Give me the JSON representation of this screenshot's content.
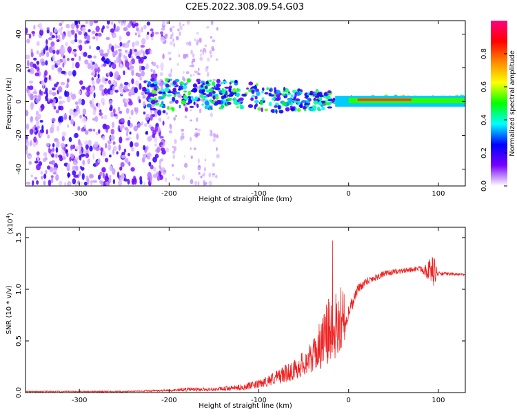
{
  "title": "C2E5.2022.308.09.54.G03",
  "colors": {
    "spectrogram_low": "#e4ccf8",
    "spectrogram_mid": "#6a00e8",
    "snr_line": "#ee2222",
    "axis": "#000000"
  },
  "chart_data": [
    {
      "type": "heatmap",
      "name": "spectrogram",
      "xlabel": "Height of straight line (km)",
      "ylabel": "Frequency (Hz)",
      "xlim": [
        -360,
        130
      ],
      "ylim": [
        -50,
        48
      ],
      "xticks": [
        -300,
        -200,
        -100,
        0,
        100
      ],
      "yticks": [
        -40,
        -20,
        0,
        20,
        40
      ],
      "colorbar": {
        "label": "Normalized spectral amplitude",
        "range": [
          0,
          1
        ],
        "ticks": [
          "0.0",
          "0.2",
          "0.4",
          "0.6",
          "0.8"
        ],
        "stops": [
          "#ffffff",
          "#7700ff",
          "#0000ff",
          "#00ffff",
          "#00ff00",
          "#ffff00",
          "#ff8800",
          "#ff0000",
          "#ff0080"
        ]
      },
      "regions": [
        {
          "desc": "broadband noise",
          "x": [
            -360,
            -205
          ],
          "freq": [
            -50,
            48
          ],
          "intensity": 0.25
        },
        {
          "desc": "sparse noise",
          "x": [
            -205,
            -145
          ],
          "freq": [
            -50,
            48
          ],
          "intensity": 0.1
        },
        {
          "desc": "signal band",
          "x": [
            -230,
            130
          ],
          "freq_center": 0,
          "intensity": 0.5
        },
        {
          "desc": "strong carrier",
          "x": [
            -15,
            130
          ],
          "freq_center": 1,
          "intensity": 0.8
        }
      ]
    },
    {
      "type": "line",
      "name": "snr",
      "xlabel": "Height of straight line (km)",
      "ylabel": "SNR (10 * v/v)",
      "multiplier": "(x10",
      "multiplier_exp": "4",
      "xlim": [
        -360,
        130
      ],
      "ylim": [
        0,
        1.6
      ],
      "xticks": [
        -300,
        -200,
        -100,
        0,
        100
      ],
      "yticks": [
        "0.0",
        "0.5",
        "1.0",
        "1.5"
      ],
      "envelope": {
        "x": [
          -360,
          -250,
          -200,
          -180,
          -150,
          -120,
          -100,
          -80,
          -60,
          -40,
          -25,
          -15,
          -10,
          -5,
          0,
          10,
          20,
          40,
          60,
          80,
          95,
          100,
          110,
          130
        ],
        "mean": [
          0.01,
          0.01,
          0.02,
          0.03,
          0.03,
          0.05,
          0.08,
          0.15,
          0.22,
          0.35,
          0.55,
          0.7,
          0.6,
          0.62,
          0.78,
          1.0,
          1.08,
          1.15,
          1.18,
          1.2,
          1.18,
          1.15,
          1.15,
          1.14
        ],
        "noise": [
          0.005,
          0.006,
          0.01,
          0.02,
          0.015,
          0.03,
          0.04,
          0.07,
          0.1,
          0.15,
          0.3,
          0.4,
          0.2,
          0.15,
          0.08,
          0.05,
          0.04,
          0.03,
          0.025,
          0.025,
          0.15,
          0.02,
          0.015,
          0.01
        ]
      }
    }
  ]
}
